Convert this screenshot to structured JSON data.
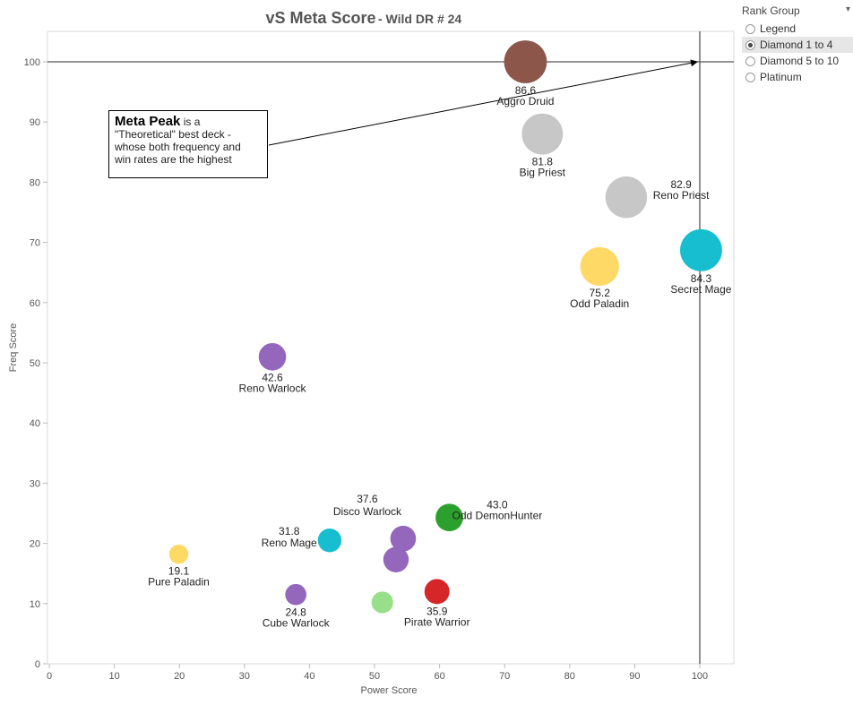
{
  "chart_data": {
    "type": "scatter",
    "title": "vS Meta Score",
    "subtitle": "- Wild DR # 24",
    "xlabel": "Power Score",
    "ylabel": "Freq Score",
    "xlim": [
      0,
      105
    ],
    "ylim": [
      -1,
      105
    ],
    "xticks": [
      0,
      10,
      20,
      30,
      40,
      50,
      60,
      70,
      80,
      90,
      100
    ],
    "yticks": [
      0,
      10,
      20,
      30,
      40,
      50,
      60,
      70,
      80,
      90,
      100
    ],
    "grid": false,
    "reference_lines": {
      "x": 100,
      "y": 100
    },
    "points": [
      {
        "deck": "Aggro Druid",
        "score": "86.6",
        "x": 73.2,
        "y": 100,
        "size": 86.6,
        "color": "#8c564b",
        "label_side": "below"
      },
      {
        "deck": "Big Priest",
        "score": "81.8",
        "x": 75.8,
        "y": 88,
        "size": 81.8,
        "color": "#c7c7c7",
        "label_side": "below"
      },
      {
        "deck": "Reno Priest",
        "score": "82.9",
        "x": 88.7,
        "y": 77.5,
        "size": 82.9,
        "color": "#c7c7c7",
        "label_side": "right"
      },
      {
        "deck": "Secret Mage",
        "score": "84.3",
        "x": 100.2,
        "y": 68.7,
        "size": 84.3,
        "color": "#17becf",
        "label_side": "below"
      },
      {
        "deck": "Odd Paladin",
        "score": "75.2",
        "x": 84.6,
        "y": 66,
        "size": 75.2,
        "color": "#ffd966",
        "label_side": "below"
      },
      {
        "deck": "Reno Warlock",
        "score": "42.6",
        "x": 34.3,
        "y": 51,
        "size": 42.6,
        "color": "#9467bd",
        "label_side": "below"
      },
      {
        "deck": "Odd DemonHunter",
        "score": "43.0",
        "x": 61.5,
        "y": 24.3,
        "size": 43.0,
        "color": "#2ca02c",
        "label_side": "right"
      },
      {
        "deck": "Disco Warlock",
        "score": "37.6",
        "x": 54.4,
        "y": 20.8,
        "size": 37.6,
        "color": "#9467bd",
        "label_side": "above-left"
      },
      {
        "deck": "Reno Mage",
        "score": "31.8",
        "x": 43.1,
        "y": 20.5,
        "size": 31.8,
        "color": "#17becf",
        "label_side": "left"
      },
      {
        "deck": "Pure Paladin",
        "score": "19.1",
        "x": 19.9,
        "y": 18.2,
        "size": 19.1,
        "color": "#ffd966",
        "label_side": "below"
      },
      {
        "deck": "",
        "score": "",
        "x": 53.3,
        "y": 17.3,
        "size": 37.0,
        "color": "#9467bd",
        "label_side": "none"
      },
      {
        "deck": "Pirate Warrior",
        "score": "35.9",
        "x": 59.6,
        "y": 12,
        "size": 35.9,
        "color": "#d62728",
        "label_side": "below"
      },
      {
        "deck": "Cube Warlock",
        "score": "24.8",
        "x": 37.9,
        "y": 11.5,
        "size": 24.8,
        "color": "#9467bd",
        "label_side": "below"
      },
      {
        "deck": "",
        "score": "",
        "x": 51.2,
        "y": 10.2,
        "size": 26.0,
        "color": "#98df8a",
        "label_side": "none"
      }
    ]
  },
  "annotation": {
    "head": "Meta Peak",
    "text1": " is a",
    "text2": "\"Theoretical\" best deck -",
    "text3": "whose both frequency and",
    "text4": "win rates are the highest"
  },
  "legend": {
    "title": "Rank Group",
    "options": [
      {
        "label": "Legend",
        "selected": false
      },
      {
        "label": "Diamond 1 to 4",
        "selected": true
      },
      {
        "label": "Diamond 5 to 10",
        "selected": false
      },
      {
        "label": "Platinum",
        "selected": false
      }
    ]
  }
}
